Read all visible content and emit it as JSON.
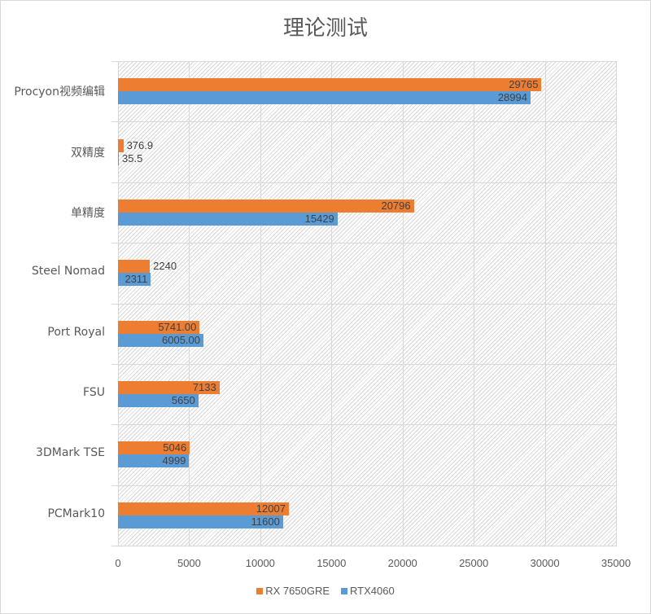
{
  "chart_data": {
    "type": "bar",
    "orientation": "horizontal",
    "title": "理论测试",
    "xlabel": "",
    "ylabel": "",
    "xlim": [
      0,
      35000
    ],
    "x_ticks": [
      "0",
      "5000",
      "10000",
      "15000",
      "20000",
      "25000",
      "30000",
      "35000"
    ],
    "grid": true,
    "legend_position": "bottom",
    "categories": [
      "Procyon视频编辑",
      "双精度",
      "单精度",
      "Steel Nomad",
      "Port Royal",
      "FSU",
      "3DMark TSE",
      "PCMark10"
    ],
    "series": [
      {
        "name": "RX 7650GRE",
        "color": "#ed7d31",
        "values": [
          29765,
          376.9,
          20796,
          2240,
          5741.0,
          7133,
          5046,
          12007
        ],
        "labels": [
          "29765",
          "376.9",
          "20796",
          "2240",
          "5741.00",
          "7133",
          "5046",
          "12007"
        ]
      },
      {
        "name": "RTX4060",
        "color": "#5b9bd5",
        "values": [
          28994,
          35.5,
          15429,
          2311,
          6005.0,
          5650,
          4999,
          11600
        ],
        "labels": [
          "28994",
          "35.5",
          "15429",
          "2311",
          "6005.00",
          "5650",
          "4999",
          "11600"
        ]
      }
    ]
  }
}
